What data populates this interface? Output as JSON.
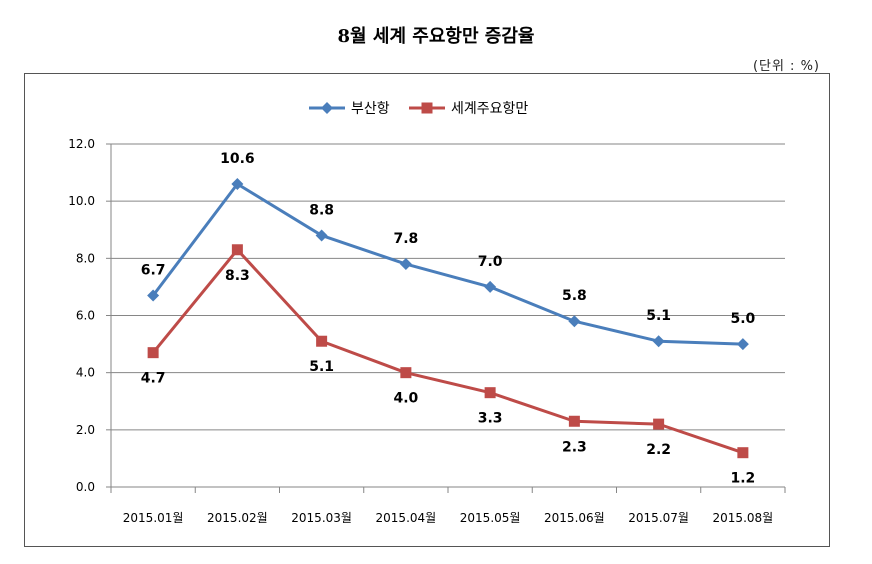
{
  "page": {
    "title": "8월 세계 주요항만 증감율",
    "unit_label": "(단위 : %)"
  },
  "chart_data": {
    "type": "line",
    "title": "8월 세계 주요항만 증감율",
    "categories": [
      "2015.01월",
      "2015.02월",
      "2015.03월",
      "2015.04월",
      "2015.05월",
      "2015.06월",
      "2015.07월",
      "2015.08월"
    ],
    "series": [
      {
        "name": "부산항",
        "values": [
          6.7,
          10.6,
          8.8,
          7.8,
          7.0,
          5.8,
          5.1,
          5.0
        ],
        "labels": [
          "6.7",
          "10.6",
          "8.8",
          "7.8",
          "7.0",
          "5.8",
          "5.1",
          "5.0"
        ],
        "color": "#4a7ebb",
        "marker": "diamond"
      },
      {
        "name": "세계주요항만",
        "values": [
          4.7,
          8.3,
          5.1,
          4.0,
          3.3,
          2.3,
          2.2,
          1.2
        ],
        "labels": [
          "4.7",
          "8.3",
          "5.1",
          "4.0",
          "3.3",
          "2.3",
          "2.2",
          "1.2"
        ],
        "color": "#be4b48",
        "marker": "square"
      }
    ],
    "yticks": [
      "0.0",
      "2.0",
      "4.0",
      "6.0",
      "8.0",
      "10.0",
      "12.0"
    ],
    "ylim": [
      0,
      12
    ],
    "xlabel": "",
    "ylabel": "",
    "grid": true,
    "legend": "top-left"
  }
}
